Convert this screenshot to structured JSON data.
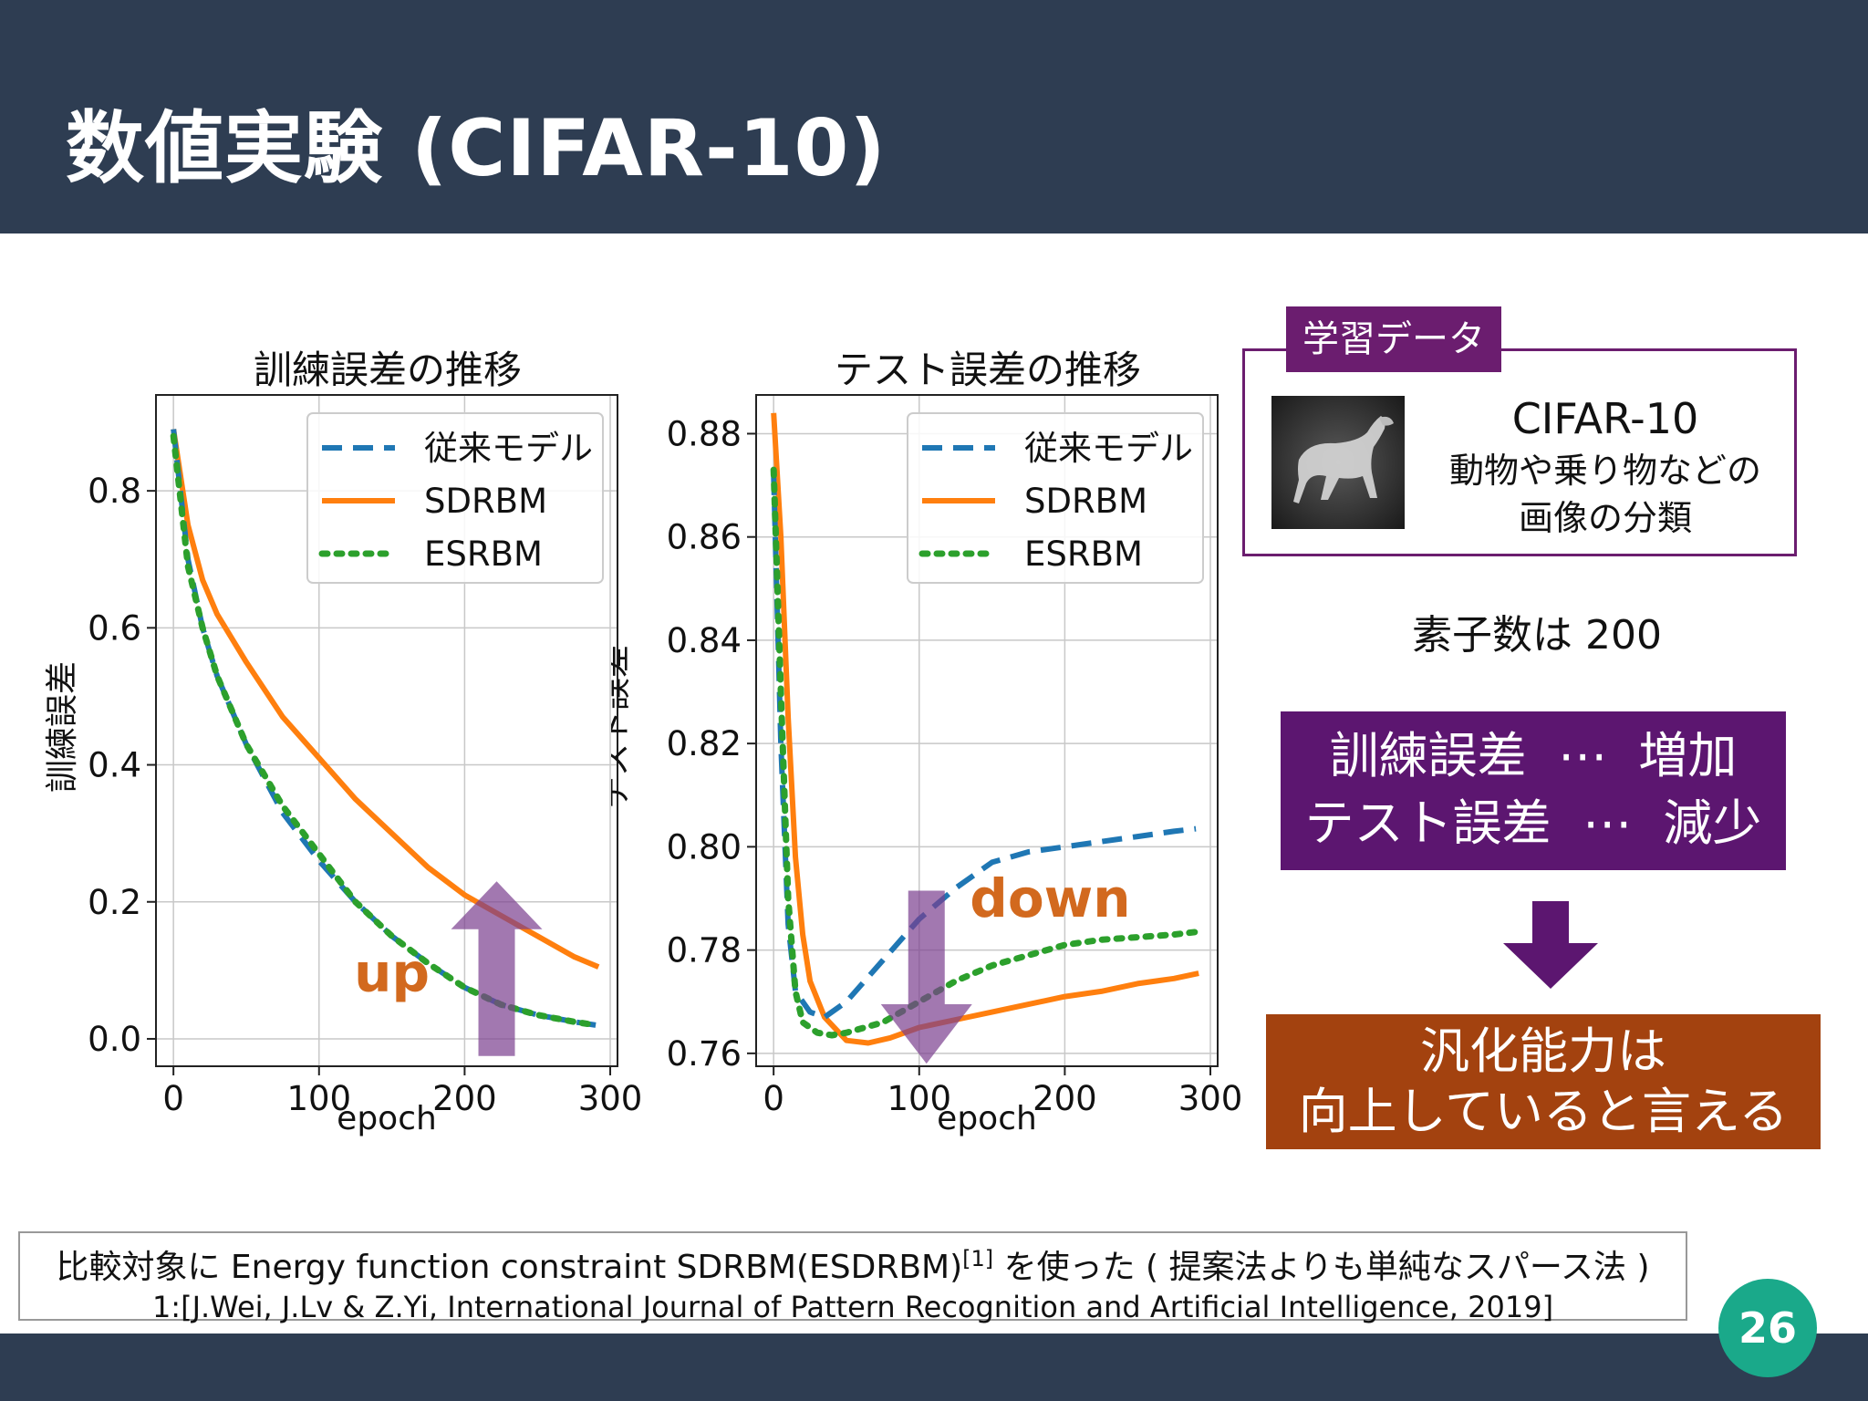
{
  "header": {
    "title": "数値実験 (CIFAR-10)"
  },
  "page_number": "26",
  "colors": {
    "header": "#2e3d52",
    "accent_purple": "#6b1d6f",
    "result_purple": "#5c1670",
    "conclusion_orange": "#a3420f",
    "badge": "#1aa98a"
  },
  "dataset_box": {
    "tag": "学習データ",
    "name": "CIFAR-10",
    "desc1": "動物や乗り物などの",
    "desc2": "画像の分類",
    "image": "horse-thumbnail"
  },
  "units_text": "素子数は 200",
  "result_box": {
    "line1": "訓練誤差  ⋯  増加",
    "line2": "テスト誤差  ⋯  減少"
  },
  "conclusion": {
    "line1": "汎化能力は",
    "line2": "向上していると言える"
  },
  "note": {
    "line1": "比較対象に Energy function constraint SDRBM(ESDRBM)",
    "sup": "[1]",
    "line1b": " を使った ( 提案法よりも単純なスパース法 )",
    "line2": "1:[J.Wei, J.Lv & Z.Yi, International Journal of Pattern Recognition and Artificial Intelligence, 2019]"
  },
  "chart_data": [
    {
      "type": "line",
      "title": "訓練誤差の推移",
      "xlabel": "epoch",
      "ylabel": "訓練誤差",
      "xlim": [
        -12,
        305
      ],
      "ylim": [
        -0.04,
        0.94
      ],
      "xticks": [
        0,
        100,
        200,
        300
      ],
      "yticks": [
        0.0,
        0.2,
        0.4,
        0.6,
        0.8
      ],
      "ytick_labels": [
        "0.0",
        "0.2",
        "0.4",
        "0.6",
        "0.8"
      ],
      "grid": true,
      "legend": "top-right",
      "series": [
        {
          "name": "従来モデル",
          "color": "#1f77b4",
          "style": "dashed",
          "x": [
            0,
            10,
            20,
            30,
            50,
            75,
            100,
            125,
            150,
            175,
            200,
            225,
            250,
            275,
            290
          ],
          "y": [
            0.89,
            0.7,
            0.6,
            0.53,
            0.43,
            0.33,
            0.26,
            0.2,
            0.15,
            0.11,
            0.075,
            0.05,
            0.035,
            0.025,
            0.02
          ]
        },
        {
          "name": "SDRBM",
          "color": "#ff7f0e",
          "style": "solid",
          "x": [
            0,
            10,
            20,
            30,
            50,
            75,
            100,
            125,
            150,
            175,
            200,
            225,
            250,
            275,
            292
          ],
          "y": [
            0.89,
            0.75,
            0.67,
            0.62,
            0.55,
            0.47,
            0.41,
            0.35,
            0.3,
            0.25,
            0.21,
            0.18,
            0.15,
            0.12,
            0.105
          ]
        },
        {
          "name": "ESRBM",
          "color": "#2ca02c",
          "style": "dotted",
          "x": [
            0,
            10,
            20,
            30,
            50,
            75,
            100,
            125,
            150,
            175,
            200,
            225,
            250,
            275,
            290
          ],
          "y": [
            0.88,
            0.69,
            0.6,
            0.53,
            0.43,
            0.34,
            0.27,
            0.2,
            0.15,
            0.11,
            0.075,
            0.05,
            0.035,
            0.025,
            0.02
          ]
        }
      ],
      "annotation": {
        "text": "up",
        "color": "#d2691e",
        "arrow": "up"
      }
    },
    {
      "type": "line",
      "title": "テスト誤差の推移",
      "xlabel": "epoch",
      "ylabel": "テスト誤差",
      "xlim": [
        -12,
        305
      ],
      "ylim": [
        0.7575,
        0.8875
      ],
      "xticks": [
        0,
        100,
        200,
        300
      ],
      "yticks": [
        0.76,
        0.78,
        0.8,
        0.82,
        0.84,
        0.86,
        0.88
      ],
      "ytick_labels": [
        "0.76",
        "0.78",
        "0.80",
        "0.82",
        "0.84",
        "0.86",
        "0.88"
      ],
      "grid": true,
      "legend": "top-right",
      "series": [
        {
          "name": "従来モデル",
          "color": "#1f77b4",
          "style": "dashed",
          "x": [
            0,
            5,
            10,
            15,
            25,
            35,
            50,
            75,
            100,
            125,
            150,
            175,
            200,
            225,
            250,
            275,
            290
          ],
          "y": [
            0.872,
            0.82,
            0.785,
            0.772,
            0.768,
            0.767,
            0.77,
            0.778,
            0.786,
            0.792,
            0.797,
            0.799,
            0.8,
            0.801,
            0.802,
            0.803,
            0.8035
          ]
        },
        {
          "name": "SDRBM",
          "color": "#ff7f0e",
          "style": "solid",
          "x": [
            0,
            5,
            10,
            15,
            20,
            25,
            35,
            50,
            65,
            80,
            100,
            125,
            150,
            175,
            200,
            225,
            250,
            275,
            292
          ],
          "y": [
            0.884,
            0.86,
            0.825,
            0.798,
            0.783,
            0.774,
            0.767,
            0.7625,
            0.762,
            0.763,
            0.765,
            0.7665,
            0.768,
            0.7695,
            0.771,
            0.772,
            0.7735,
            0.7745,
            0.7755
          ]
        },
        {
          "name": "ESRBM",
          "color": "#2ca02c",
          "style": "dotted",
          "x": [
            0,
            5,
            10,
            15,
            20,
            30,
            40,
            50,
            75,
            100,
            125,
            150,
            175,
            200,
            225,
            250,
            275,
            290
          ],
          "y": [
            0.873,
            0.83,
            0.79,
            0.772,
            0.766,
            0.764,
            0.7635,
            0.764,
            0.766,
            0.77,
            0.774,
            0.777,
            0.779,
            0.781,
            0.782,
            0.7825,
            0.783,
            0.7835
          ]
        }
      ],
      "annotation": {
        "text": "down",
        "color": "#d2691e",
        "arrow": "down"
      }
    }
  ]
}
